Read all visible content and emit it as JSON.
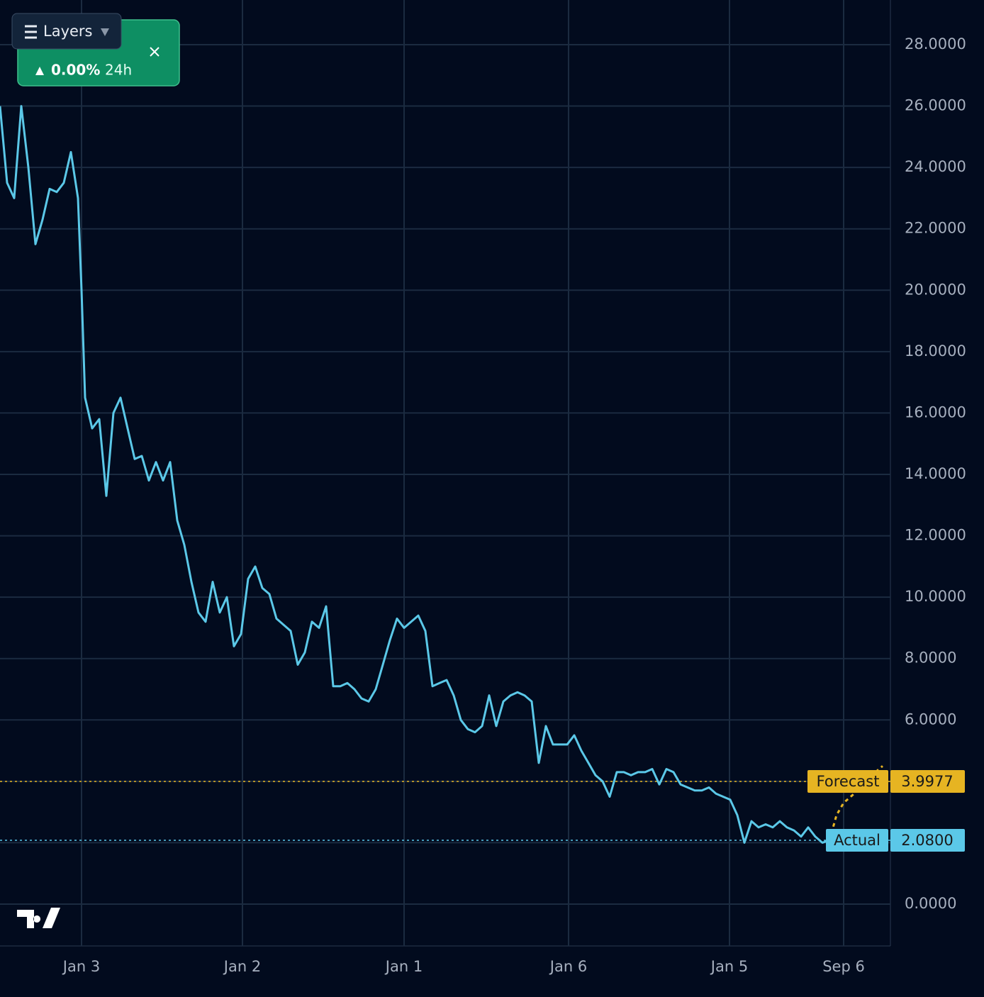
{
  "chart_data": {
    "type": "line",
    "series": [
      {
        "name": "Actual",
        "color": "#5bc8e8",
        "x": [
          0,
          1,
          2,
          3,
          4,
          5,
          6,
          7,
          8,
          9,
          10,
          11,
          11.5,
          12,
          13,
          14,
          15,
          16,
          17,
          18,
          19,
          20,
          21,
          22,
          23,
          24,
          25,
          26,
          27,
          28,
          29,
          30,
          31,
          32,
          33,
          34,
          35,
          36,
          37,
          38,
          39,
          40,
          41,
          42,
          43,
          44,
          45,
          46,
          47,
          48,
          49,
          50,
          51,
          52,
          53,
          54,
          55,
          56,
          57,
          58,
          59,
          60,
          61,
          62,
          63,
          64,
          65,
          66,
          67,
          68,
          69,
          70,
          71,
          72,
          73,
          74,
          75,
          76,
          77,
          78,
          79,
          80,
          81,
          82,
          83,
          84,
          85,
          86,
          87,
          88,
          89,
          90,
          91,
          92,
          93,
          94,
          95,
          96,
          97,
          98,
          99,
          100,
          101,
          102,
          103,
          104,
          105,
          106,
          107,
          108,
          109,
          110,
          111,
          112,
          113,
          114,
          115,
          116,
          117
        ],
        "values": [
          26,
          23.5,
          23,
          26,
          24,
          21.5,
          22.3,
          23.3,
          23.2,
          23.5,
          24.5,
          23,
          20,
          16.5,
          15.5,
          15.8,
          13.3,
          16,
          16.5,
          15.5,
          14.5,
          14.6,
          13.8,
          14.4,
          13.8,
          14.4,
          12.5,
          11.7,
          10.5,
          9.5,
          9.2,
          10.5,
          9.5,
          10,
          8.4,
          8.8,
          10.6,
          11,
          10.3,
          10.1,
          9.3,
          9.1,
          8.9,
          7.8,
          8.2,
          9.2,
          9,
          9.7,
          7.1,
          7.1,
          7.2,
          7,
          6.7,
          6.6,
          7,
          7.8,
          8.6,
          9.3,
          9,
          9.2,
          9.4,
          8.9,
          7.1,
          7.2,
          7.3,
          6.8,
          6,
          5.7,
          5.6,
          5.8,
          6.8,
          5.8,
          6.6,
          6.8,
          6.9,
          6.8,
          6.6,
          4.6,
          5.8,
          5.2,
          5.2,
          5.2,
          5.5,
          5,
          4.6,
          4.2,
          4,
          3.5,
          4.3,
          4.3,
          4.2,
          4.3,
          4.3,
          4.4,
          3.9,
          4.4,
          4.3,
          3.9,
          3.8,
          3.7,
          3.7,
          3.8,
          3.6,
          3.5,
          3.4,
          2.9,
          2,
          2.7,
          2.5,
          2.6,
          2.5,
          2.7,
          2.5,
          2.4,
          2.2,
          2.5,
          2.2,
          2,
          2.08
        ]
      },
      {
        "name": "Forecast",
        "color": "#e6b422",
        "dashed": true,
        "x": [
          117,
          118,
          119,
          120,
          121,
          122,
          123,
          124.5
        ],
        "values": [
          2.08,
          2.9,
          3.3,
          3.5,
          3.7,
          3.9,
          4.2,
          4.5
        ]
      }
    ],
    "price_lines": [
      {
        "name": "Forecast",
        "value": 3.9977,
        "color": "#e6b422"
      },
      {
        "name": "Actual",
        "value": 2.08,
        "value_label": "2.0800",
        "color": "#5bc8e8"
      }
    ],
    "xlim": [
      0,
      125.6
    ],
    "ylim": [
      -1.363,
      29.455
    ],
    "xticks": [
      {
        "value": 11.5,
        "label": "Jan 3"
      },
      {
        "value": 34.2,
        "label": "Jan 2"
      },
      {
        "value": 57,
        "label": "Jan 1"
      },
      {
        "value": 80.2,
        "label": "Jan 6"
      },
      {
        "value": 102.9,
        "label": "Jan 5"
      },
      {
        "value": 119,
        "label": "Sep 6"
      }
    ],
    "yticks": [
      {
        "value": 0,
        "label": "0.0000"
      },
      {
        "value": 2,
        "label": "2.0000"
      },
      {
        "value": 4,
        "label": "4.0000"
      },
      {
        "value": 6,
        "label": "6.0000"
      },
      {
        "value": 8,
        "label": "8.0000"
      },
      {
        "value": 10,
        "label": "10.0000"
      },
      {
        "value": 12,
        "label": "12.0000"
      },
      {
        "value": 14,
        "label": "14.0000"
      },
      {
        "value": 16,
        "label": "16.0000"
      },
      {
        "value": 18,
        "label": "18.0000"
      },
      {
        "value": 20,
        "label": "20.0000"
      },
      {
        "value": 22,
        "label": "22.0000"
      },
      {
        "value": 24,
        "label": "24.0000"
      },
      {
        "value": 26,
        "label": "26.0000"
      },
      {
        "value": 28,
        "label": "28.0000"
      }
    ],
    "grid": true
  },
  "badge": {
    "change": "0.00%",
    "period": "24h"
  },
  "controls": {
    "layers": "Layers"
  }
}
